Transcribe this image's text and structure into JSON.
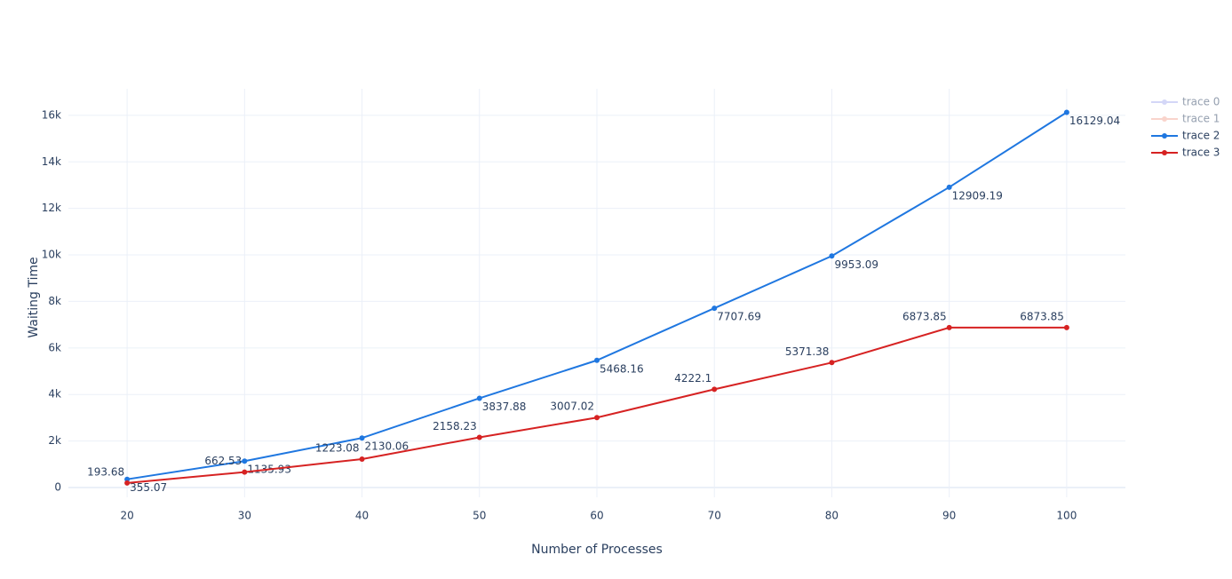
{
  "chart_data": {
    "type": "line",
    "x_label": "Number of Processes",
    "y_label": "Waiting Time",
    "x": [
      20,
      30,
      40,
      50,
      60,
      70,
      80,
      90,
      100
    ],
    "series": [
      {
        "name": "trace 0",
        "color": "#aab0f0",
        "visible": false
      },
      {
        "name": "trace 1",
        "color": "#f4aa9a",
        "visible": false
      },
      {
        "name": "trace 2",
        "color": "#1f77e0",
        "label_position": "bottom right",
        "values": [
          355.07,
          1135.93,
          2130.06,
          3837.88,
          5468.16,
          7707.69,
          9953.09,
          12909.19,
          16129.04
        ]
      },
      {
        "name": "trace 3",
        "color": "#d62222",
        "label_position": "top left",
        "values": [
          193.68,
          662.53,
          1223.08,
          2158.23,
          3007.02,
          4222.1,
          5371.38,
          6873.85,
          6873.85
        ]
      }
    ],
    "xlim": [
      15,
      105
    ],
    "xticks": [
      20,
      30,
      40,
      50,
      60,
      70,
      80,
      90,
      100
    ],
    "ylim": [
      -420,
      17140
    ],
    "yticks": [
      0,
      {
        "value": 2000,
        "label": "2k"
      },
      {
        "value": 4000,
        "label": "4k"
      },
      {
        "value": 6000,
        "label": "6k"
      },
      {
        "value": 8000,
        "label": "8k"
      },
      {
        "value": 10000,
        "label": "10k"
      },
      {
        "value": 12000,
        "label": "12k"
      },
      {
        "value": 14000,
        "label": "14k"
      },
      {
        "value": 16000,
        "label": "16k"
      }
    ],
    "grid": true,
    "legend": "top right"
  }
}
